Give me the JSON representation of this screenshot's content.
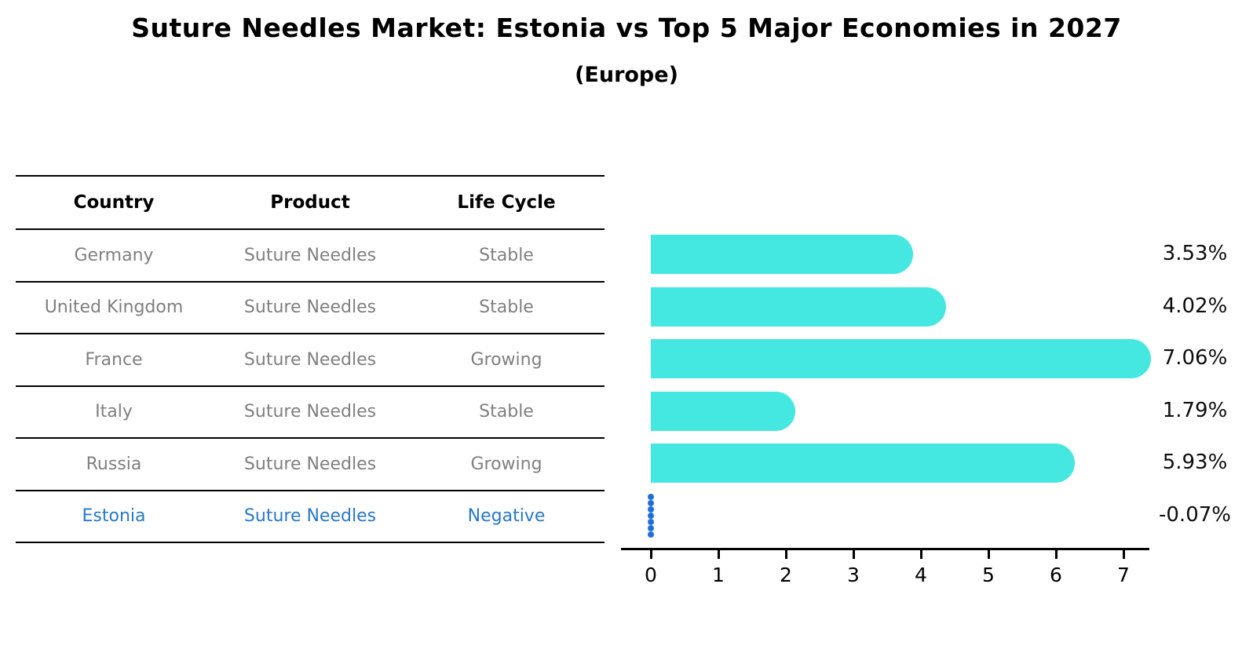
{
  "title": "Suture Needles Market: Estonia vs Top 5 Major Economies in 2027",
  "subtitle": "(Europe)",
  "table": {
    "headers": [
      "Country",
      "Product",
      "Life Cycle"
    ],
    "rows": [
      {
        "country": "Germany",
        "product": "Suture Needles",
        "life_cycle": "Stable",
        "highlight": false
      },
      {
        "country": "United Kingdom",
        "product": "Suture Needles",
        "life_cycle": "Stable",
        "highlight": false
      },
      {
        "country": "France",
        "product": "Suture Needles",
        "life_cycle": "Growing",
        "highlight": false
      },
      {
        "country": "Italy",
        "product": "Suture Needles",
        "life_cycle": "Stable",
        "highlight": false
      },
      {
        "country": "Russia",
        "product": "Suture Needles",
        "life_cycle": "Growing",
        "highlight": false
      },
      {
        "country": "Estonia",
        "product": "Suture Needles",
        "life_cycle": "Negative",
        "highlight": true
      }
    ]
  },
  "chart_data": {
    "type": "bar",
    "orientation": "horizontal",
    "categories": [
      "Germany",
      "United Kingdom",
      "France",
      "Italy",
      "Russia",
      "Estonia"
    ],
    "values": [
      3.53,
      4.02,
      7.06,
      1.79,
      5.93,
      -0.07
    ],
    "value_labels": [
      "3.53%",
      "4.02%",
      "7.06%",
      "1.79%",
      "5.93%",
      "-0.07%"
    ],
    "x_ticks": [
      "0",
      "1",
      "2",
      "3",
      "4",
      "5",
      "6",
      "7"
    ],
    "xlim": [
      0,
      7.4
    ],
    "grid": false,
    "legend": "none",
    "bar_color": "#45e8e0",
    "negative_marker_color": "#1e6fd9",
    "highlight_text_color": "#2878c8",
    "label_color": "#0d0d0d"
  }
}
